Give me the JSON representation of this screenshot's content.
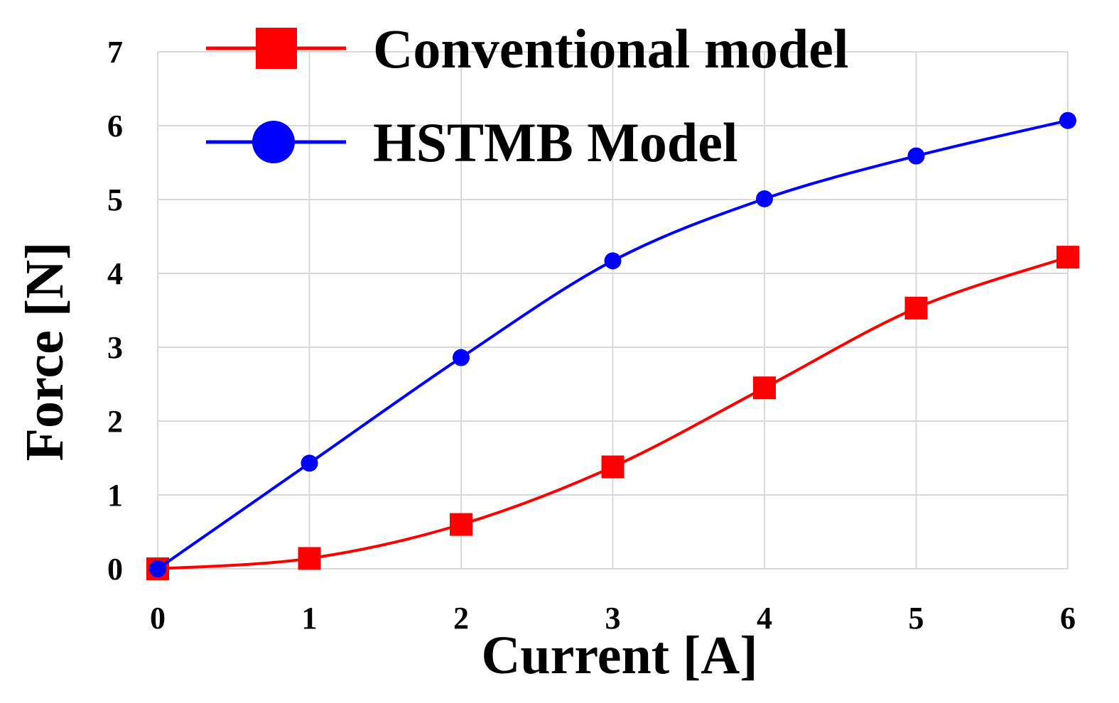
{
  "chart_data": {
    "type": "line",
    "title": "",
    "xlabel": "Current [A]",
    "ylabel": "Force [N]",
    "x": [
      0,
      1,
      2,
      3,
      4,
      5,
      6
    ],
    "xlim": [
      0,
      6
    ],
    "ylim": [
      0,
      7
    ],
    "xticks": [
      "0",
      "1",
      "2",
      "3",
      "4",
      "5",
      "6"
    ],
    "yticks": [
      "0",
      "1",
      "2",
      "3",
      "4",
      "5",
      "6",
      "7"
    ],
    "grid": true,
    "legend_position": "top-left",
    "series": [
      {
        "name": "Conventional model",
        "color": "#ff0000",
        "marker": "square",
        "values": [
          0.0,
          0.14,
          0.6,
          1.38,
          2.45,
          3.53,
          4.22
        ]
      },
      {
        "name": "HSTMB Model",
        "color": "#0000ff",
        "marker": "circle",
        "values": [
          0.0,
          1.43,
          2.86,
          4.17,
          5.01,
          5.59,
          6.07
        ]
      }
    ]
  }
}
